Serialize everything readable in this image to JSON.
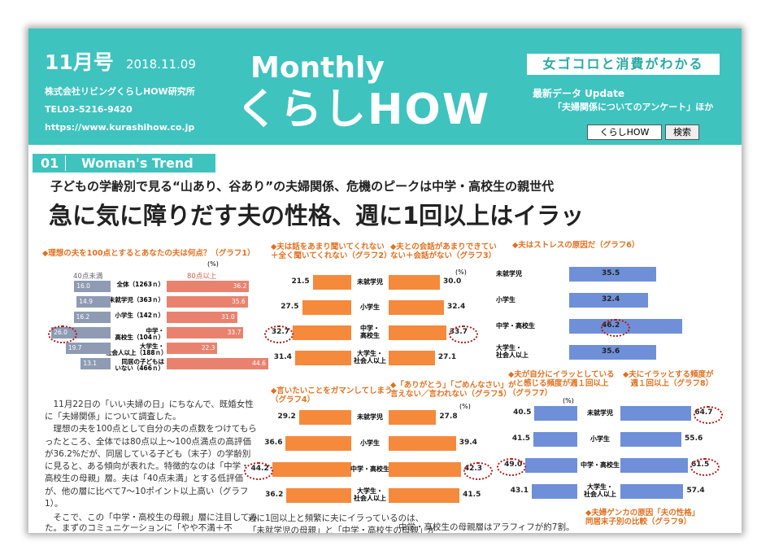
{
  "header": {
    "issue": "11月号",
    "date": "2018.11.09",
    "company": "株式会社リビングくらしHOW研究所",
    "tel": "TEL03-5216-9420",
    "url": "https://www.kurashihow.co.jp",
    "brand_top": "Monthly",
    "brand": "くらしHOW",
    "tagline": "女ゴコロと消費がわかる",
    "update": "最新データ Update",
    "update_detail": "「夫婦関係についてのアンケート」ほか",
    "button_site": "くらしHOW",
    "button_search": "検索"
  },
  "section": {
    "number": "01",
    "name": "Woman's Trend"
  },
  "subtitle": "子どもの学齢別で見る“山あり、谷あり”の夫婦関係、危機のピークは中学・高校生の親世代",
  "headline": "急に気に障りだす夫の性格、週に1回以上はイラッ",
  "article": [
    "　11月22日の「いい夫婦の日」にちなんで、既婚女性に「夫婦関係」について調査した。\n　理想の夫を100点として自分の夫の点数をつけてもらったところ、全体では80点以上〜100点満点の高評価が36.2%だが、同居している子ども（末子）の学齢別に見ると、ある傾向が表れた。特徴的なのは「中学・高校生の母親」層。夫は「40点未満」とする低評価が、他の層に比べて7〜10ポイント以上高い（グラフ1）。",
    "　そこで、この「中学・高校生の母親」層に注目してみた。まずのコミュニケーションに「やや不満＋不",
    "週に1回以上と頻繁に夫にイラっているのは、\n「未就学児の母親」と「中学・高校生の母親」が",
    "中学・高校生の母親層はアラフィフが約7割。"
  ],
  "next_chart_title": "◆夫婦ゲンカの原因「夫の性格」\n同居末子別の比較（グラフ9）",
  "chart_data": [
    {
      "type": "diverging-bar",
      "title": "◆理想の夫を100点とするとあなたの夫は何点？（グラフ1）",
      "unit": "(%)",
      "categories": [
        "全体（1263ｎ）",
        "未就学児（363ｎ）",
        "小学生（142ｎ）",
        "中学・\n高校生（104ｎ）",
        "大学生・\n社会人以上（188ｎ）",
        "同居の子どもは\nいない（466ｎ）"
      ],
      "series": [
        {
          "name": "40点未満",
          "color": "#8e9bb3",
          "values": [
            16.0,
            14.9,
            16.2,
            26.0,
            19.7,
            13.1
          ],
          "value_labels": [
            "16.0",
            "14.9",
            "16.2",
            "26.0",
            "19.7",
            "13.1"
          ],
          "highlight": [
            3
          ]
        },
        {
          "name": "80点以上",
          "color": "#e8826e",
          "values": [
            36.2,
            35.6,
            31.0,
            33.7,
            22.3,
            44.6
          ],
          "value_labels": [
            "36.2",
            "35.6",
            "31.0",
            "33.7",
            "22.3",
            "44.6"
          ],
          "highlight": []
        }
      ]
    },
    {
      "type": "bar",
      "title": "◆夫は話をあまり聞いてくれない\n＋全く聞いてくれない（グラフ2）",
      "categories": [
        "未就学児",
        "小学生",
        "中学・\n高校生",
        "大学生・\n社会人以上"
      ],
      "values": [
        21.5,
        27.5,
        32.7,
        31.4
      ],
      "color": "#f58a3c",
      "highlight": [
        2
      ]
    },
    {
      "type": "bar",
      "title": "◆夫との会話があまりできてい\nない＋会話がない（グラフ3）",
      "unit": "(%)",
      "values": [
        30.0,
        32.4,
        33.7,
        27.1
      ],
      "value_labels": [
        "30.0",
        "32.4",
        "33.7",
        "27.1"
      ],
      "color": "#f58a3c",
      "highlight": [
        2
      ]
    },
    {
      "type": "bar",
      "title": "◆言いたいことをガマンしてしまう\n（グラフ4）",
      "categories": [
        "未就学児",
        "小学生",
        "中学・高校生",
        "大学生・\n社会人以上"
      ],
      "values": [
        29.2,
        36.6,
        44.2,
        36.2
      ],
      "color": "#f58a3c",
      "highlight": [
        2
      ]
    },
    {
      "type": "bar",
      "title": "◆「ありがとう」「ごめんなさい」が\n言えない／言われない（グラフ5）",
      "unit": "(%)",
      "values": [
        27.8,
        39.4,
        42.3,
        41.5
      ],
      "color": "#f58a3c",
      "highlight": [
        2
      ]
    },
    {
      "type": "bar",
      "title": "◆夫はストレスの原因だ（グラフ6）",
      "categories": [
        "未就学児",
        "小学生",
        "中学・高校生",
        "大学生・\n社会人以上"
      ],
      "values": [
        35.5,
        32.4,
        46.2,
        35.6
      ],
      "color": "#6f90d8",
      "highlight": [
        2
      ]
    },
    {
      "type": "bar",
      "title": "◆夫が自分にイラッとしている\n　と感じる頻度が週１回以上\n（グラフ7）",
      "unit": "(%)",
      "categories": [
        "未就学児",
        "小学生",
        "中学・高校生",
        "大学生・\n社会人以上"
      ],
      "values": [
        40.5,
        41.5,
        49.0,
        43.1
      ],
      "value_labels": [
        "40.5",
        "41.5",
        "49.0",
        "43.1"
      ],
      "color": "#6f90d8",
      "highlight": [
        2
      ]
    },
    {
      "type": "bar",
      "title": "◆夫にイラッとする頻度が\n　週１回以上（グラフ8）",
      "values": [
        64.7,
        55.6,
        61.5,
        57.4
      ],
      "color": "#6f90d8",
      "highlight": [
        0,
        2
      ]
    }
  ]
}
